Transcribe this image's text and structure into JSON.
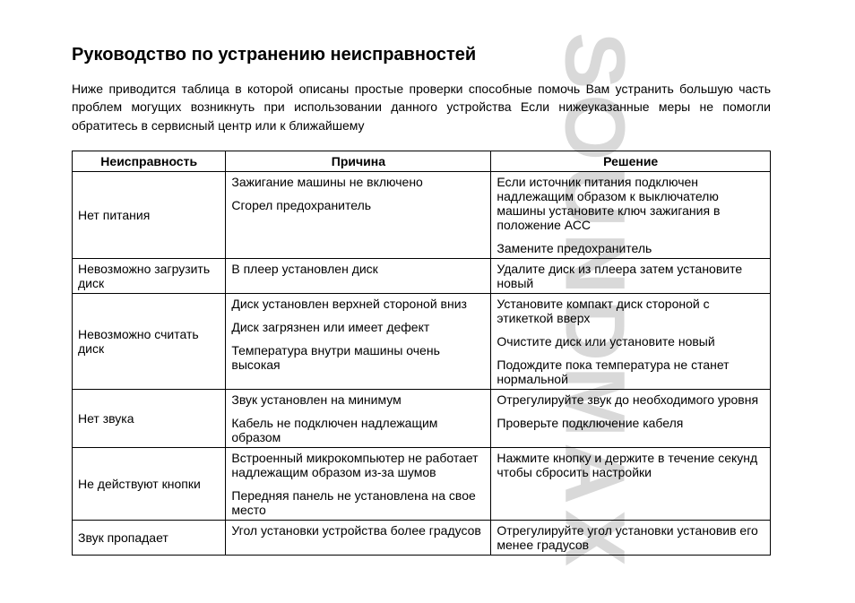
{
  "watermark": "SOUNDMAX",
  "title": "Руководство по устранению неисправностей",
  "intro": "Ниже приводится таблица в которой описаны простые проверки способные помочь Вам устранить большую часть проблем могущих возникнуть при использовании данного устройства Если нижеуказанные меры не помогли обратитесь в сервисный центр или к ближайшему",
  "table": {
    "headers": [
      "Неисправность",
      "Причина",
      "Решение"
    ],
    "rows": [
      {
        "malfunction": "Нет питания",
        "pairs": [
          {
            "cause": "Зажигание машины не включено",
            "fix": "Если источник питания подключен надлежащим образом к выключателю машины установите ключ зажигания в положение АСС"
          },
          {
            "cause": "Сгорел предохранитель",
            "fix": "Замените предохранитель"
          }
        ]
      },
      {
        "malfunction": "Невозможно загрузить диск",
        "pairs": [
          {
            "cause": "В плеер установлен диск",
            "fix": "Удалите диск из плеера затем установите новый"
          }
        ]
      },
      {
        "malfunction": "Невозможно считать диск",
        "pairs": [
          {
            "cause": "Диск установлен верхней стороной вниз",
            "fix": "Установите компакт диск стороной с этикеткой вверх"
          },
          {
            "cause": "Диск загрязнен или имеет дефект",
            "fix": "Очистите диск или установите новый"
          },
          {
            "cause": "Температура внутри машины очень высокая",
            "fix": "Подождите пока температура не станет нормальной"
          }
        ]
      },
      {
        "malfunction": "Нет звука",
        "pairs": [
          {
            "cause": "Звук установлен на минимум",
            "fix": "Отрегулируйте звук до необходимого уровня"
          },
          {
            "cause": "Кабель не подключен надлежащим образом",
            "fix": "Проверьте подключение кабеля"
          }
        ]
      },
      {
        "malfunction": "Не действуют кнопки",
        "pairs": [
          {
            "cause": "Встроенный микрокомпьютер не работает надлежащим образом из-за шумов",
            "fix": "Нажмите кнопку           и держите в течение     секунд чтобы сбросить настройки"
          },
          {
            "cause": "Передняя панель не установлена на свое место",
            "fix": ""
          }
        ]
      },
      {
        "malfunction": "Звук пропадает",
        "pairs": [
          {
            "cause": "Угол установки устройства более      градусов",
            "fix": "Отрегулируйте угол установки установив его менее     градусов"
          }
        ]
      }
    ]
  },
  "style": {
    "page_bg": "#ffffff",
    "text_color": "#000000",
    "watermark_color": "#d9d9d9",
    "border_color": "#000000",
    "title_fontsize": 20,
    "body_fontsize": 14,
    "watermark_fontsize": 95,
    "col_widths_pct": [
      22,
      38,
      40
    ]
  }
}
